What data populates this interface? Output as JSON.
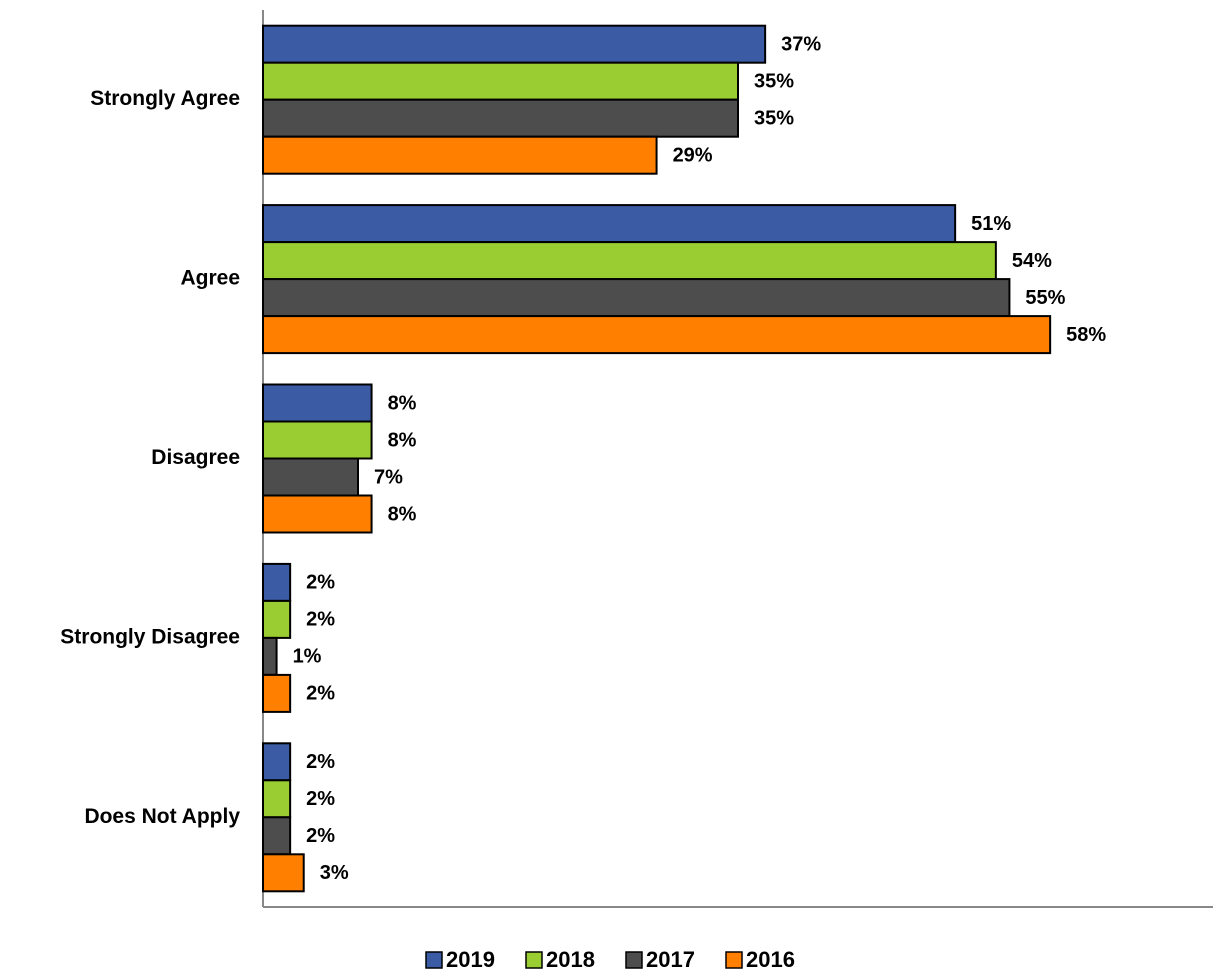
{
  "chart_data": {
    "type": "hbar",
    "categories": [
      "Strongly Agree",
      "Agree",
      "Disagree",
      "Strongly Disagree",
      "Does Not Apply"
    ],
    "series": [
      {
        "name": "2019",
        "color": "#3b5ba5",
        "values": [
          37,
          51,
          8,
          2,
          2
        ],
        "value_labels": [
          "37%",
          "51%",
          "8%",
          "2%",
          "2%"
        ]
      },
      {
        "name": "2018",
        "color": "#9acd32",
        "values": [
          35,
          54,
          8,
          2,
          2
        ],
        "value_labels": [
          "35%",
          "54%",
          "8%",
          "2%",
          "2%"
        ]
      },
      {
        "name": "2017",
        "color": "#4d4d4d",
        "values": [
          35,
          55,
          7,
          1,
          2
        ],
        "value_labels": [
          "35%",
          "55%",
          "7%",
          "1%",
          "2%"
        ]
      },
      {
        "name": "2016",
        "color": "#ff8000",
        "values": [
          29,
          58,
          8,
          2,
          3
        ],
        "value_labels": [
          "29%",
          "58%",
          "8%",
          "2%",
          "3%"
        ]
      }
    ],
    "xlim": [
      0,
      70
    ],
    "legend": "bottom"
  }
}
